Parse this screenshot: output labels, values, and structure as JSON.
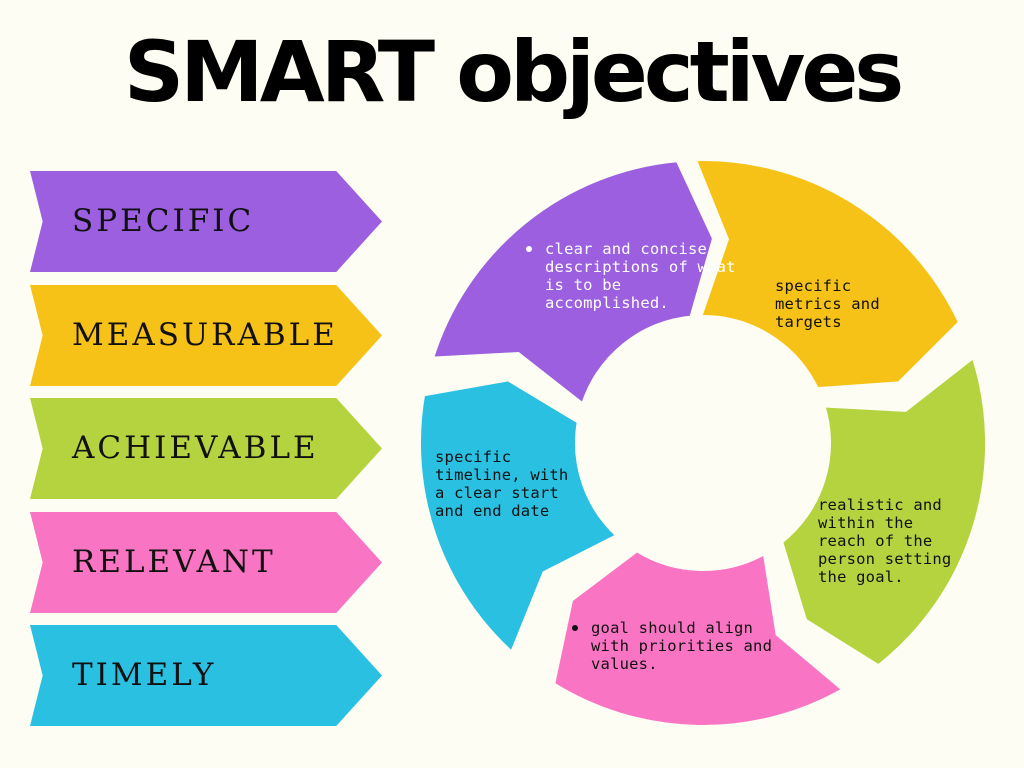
{
  "title": "SMART objectives",
  "colors": {
    "background": "#fdfdf4",
    "purple": "#9b5fe0",
    "yellow": "#f7c218",
    "green": "#b5d23f",
    "pink": "#f974c3",
    "blue": "#29c0e2"
  },
  "criteria": [
    {
      "label": "SPECIFIC",
      "color": "#9b5fe0"
    },
    {
      "label": "MEASURABLE",
      "color": "#f7c218"
    },
    {
      "label": "ACHIEVABLE",
      "color": "#b5d23f"
    },
    {
      "label": "RELEVANT",
      "color": "#f974c3"
    },
    {
      "label": "TIMELY",
      "color": "#29c0e2"
    }
  ],
  "cycle": {
    "specific": "clear and concise descriptions of what is to be accomplished.",
    "measurable": "specific metrics and targets",
    "achievable": "realistic and within the reach of the person setting the goal.",
    "relevant": "goal should align with  priorities and values.",
    "timely": "specific timeline, with a clear start and end date"
  }
}
